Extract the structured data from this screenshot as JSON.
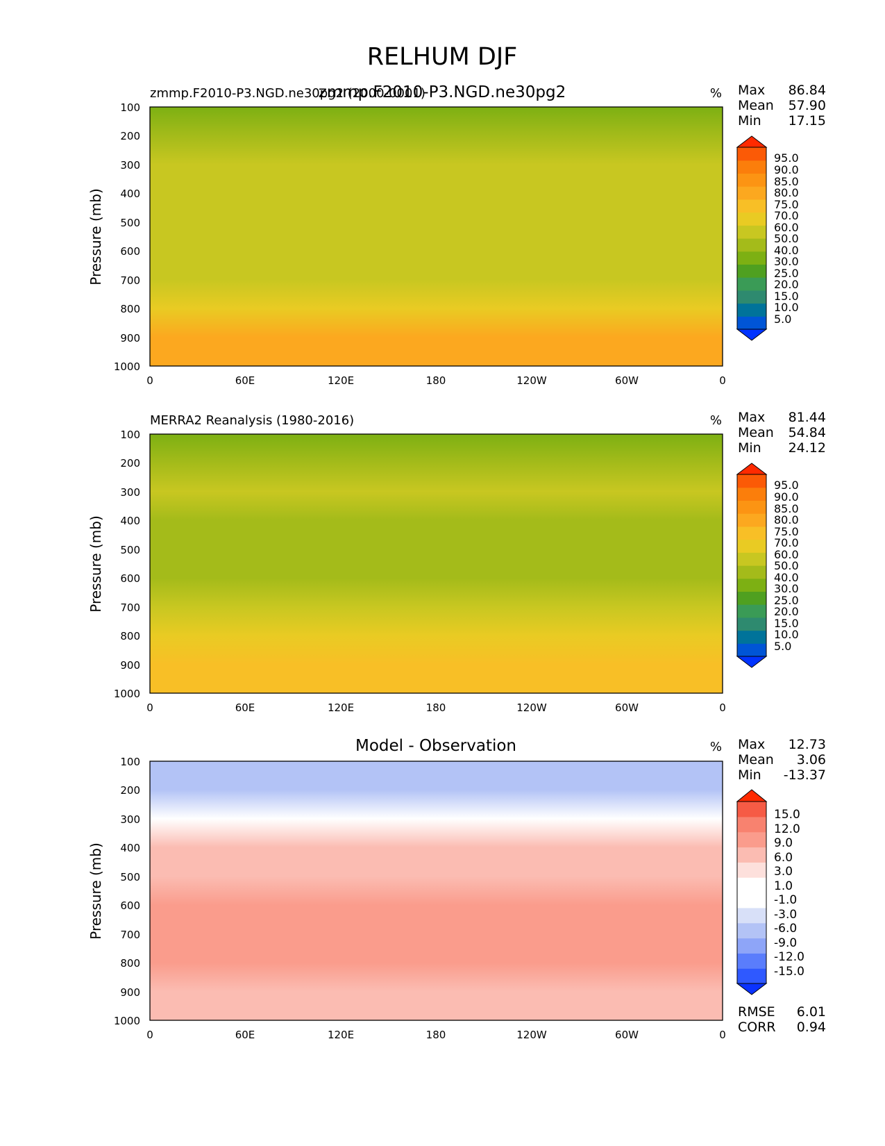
{
  "figure": {
    "title": "RELHUM DJF"
  },
  "x_ticks": [
    "0",
    "60E",
    "120E",
    "180",
    "120W",
    "60W",
    "0"
  ],
  "y_ticks": [
    "100",
    "200",
    "300",
    "400",
    "500",
    "600",
    "700",
    "800",
    "900",
    "1000"
  ],
  "ylabel": "Pressure (mb)",
  "stats_labels": {
    "max": "Max",
    "mean": "Mean",
    "min": "Min",
    "rmse": "RMSE",
    "corr": "CORR"
  },
  "colors": {
    "abs_levels": [
      "#0033ff",
      "#0055d6",
      "#00739a",
      "#2e8a6f",
      "#3a9b56",
      "#4fa020",
      "#7db013",
      "#a4bb1a",
      "#c8c721",
      "#e9cb23",
      "#f8bf26",
      "#fca81f",
      "#fc9413",
      "#fb7e0b",
      "#fb5a06",
      "#ff2a00"
    ],
    "diff_levels": [
      "#0a32ff",
      "#2f59ff",
      "#5a7dfc",
      "#8ea5f8",
      "#b3c3f6",
      "#d8e0f8",
      "#ffffff",
      "#ffffff",
      "#fde0dc",
      "#fbbcb2",
      "#fa9c8c",
      "#f8826f",
      "#f65b45",
      "#ff2a00"
    ]
  },
  "chart_data": [
    {
      "type": "contourf",
      "title": "zmmp.F2010-P3.NGD.ne30pg2",
      "left_title": "zmmp.F2010-P3.NGD.ne30pg2 (2000-0001)",
      "units": "%",
      "xlabel": "",
      "ylabel": "Pressure (mb)",
      "x_range": [
        "0",
        "360"
      ],
      "ylim": [
        1000,
        100
      ],
      "stats": {
        "max": "86.84",
        "mean": "57.90",
        "min": "17.15"
      },
      "colorbar_ticks": [
        "95.0",
        "90.0",
        "85.0",
        "80.0",
        "75.0",
        "70.0",
        "60.0",
        "50.0",
        "40.0",
        "30.0",
        "25.0",
        "20.0",
        "15.0",
        "10.0",
        "5.0"
      ],
      "profile_by_pressure": [
        {
          "p": 100,
          "value": 36
        },
        {
          "p": 200,
          "value": 43
        },
        {
          "p": 300,
          "value": 52
        },
        {
          "p": 400,
          "value": 53
        },
        {
          "p": 500,
          "value": 54
        },
        {
          "p": 600,
          "value": 54
        },
        {
          "p": 700,
          "value": 58
        },
        {
          "p": 800,
          "value": 69
        },
        {
          "p": 900,
          "value": 78
        },
        {
          "p": 1000,
          "value": 79
        }
      ]
    },
    {
      "type": "contourf",
      "title": "",
      "left_title": "MERRA2 Reanalysis (1980-2016)",
      "units": "%",
      "xlabel": "",
      "ylabel": "Pressure (mb)",
      "x_range": [
        "0",
        "360"
      ],
      "ylim": [
        1000,
        100
      ],
      "stats": {
        "max": "81.44",
        "mean": "54.84",
        "min": "24.12"
      },
      "colorbar_ticks": [
        "95.0",
        "90.0",
        "85.0",
        "80.0",
        "75.0",
        "70.0",
        "60.0",
        "50.0",
        "40.0",
        "30.0",
        "25.0",
        "20.0",
        "15.0",
        "10.0",
        "5.0"
      ],
      "profile_by_pressure": [
        {
          "p": 100,
          "value": 38
        },
        {
          "p": 200,
          "value": 44
        },
        {
          "p": 300,
          "value": 51
        },
        {
          "p": 400,
          "value": 49
        },
        {
          "p": 500,
          "value": 48
        },
        {
          "p": 600,
          "value": 49
        },
        {
          "p": 700,
          "value": 53
        },
        {
          "p": 800,
          "value": 62
        },
        {
          "p": 900,
          "value": 71
        },
        {
          "p": 1000,
          "value": 74
        }
      ]
    },
    {
      "type": "contourf",
      "title": "Model - Observation",
      "left_title": "",
      "units": "%",
      "xlabel": "",
      "ylabel": "Pressure (mb)",
      "x_range": [
        "0",
        "360"
      ],
      "ylim": [
        1000,
        100
      ],
      "stats": {
        "max": "12.73",
        "mean": "3.06",
        "min": "-13.37",
        "rmse": "6.01",
        "corr": "0.94"
      },
      "colorbar_ticks": [
        "15.0",
        "12.0",
        "9.0",
        "6.0",
        "3.0",
        "1.0",
        "-1.0",
        "-3.0",
        "-6.0",
        "-9.0",
        "-12.0",
        "-15.0"
      ],
      "profile_by_pressure": [
        {
          "p": 100,
          "value": -4
        },
        {
          "p": 200,
          "value": -6
        },
        {
          "p": 300,
          "value": -1
        },
        {
          "p": 400,
          "value": 4
        },
        {
          "p": 500,
          "value": 5
        },
        {
          "p": 600,
          "value": 6
        },
        {
          "p": 700,
          "value": 7
        },
        {
          "p": 800,
          "value": 7
        },
        {
          "p": 900,
          "value": 5
        },
        {
          "p": 1000,
          "value": 3
        }
      ]
    }
  ]
}
